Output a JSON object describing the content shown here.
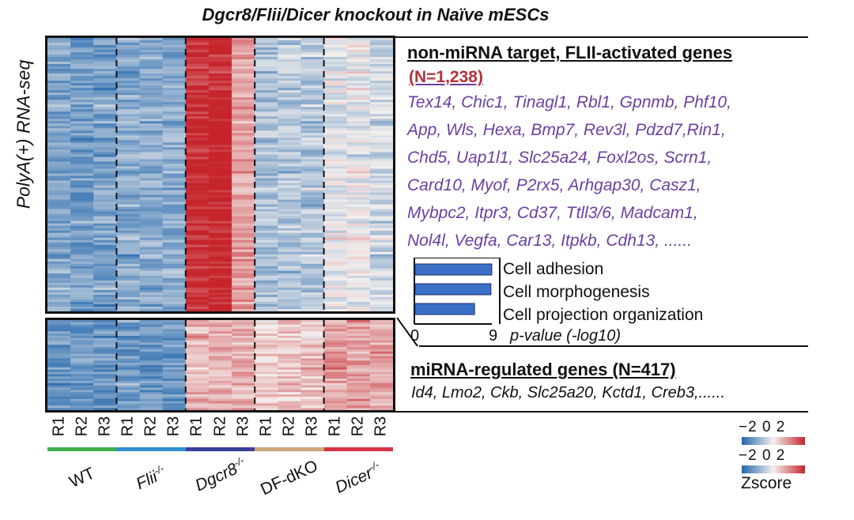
{
  "title": "Dgcr8/Flii/Dicer knockout in Naïve mESCs",
  "ylabel": "PolyA(+) RNA-seq",
  "heatmap": {
    "replicates": [
      "R1",
      "R2",
      "R3",
      "R1",
      "R2",
      "R3",
      "R1",
      "R2",
      "R3",
      "R1",
      "R2",
      "R3",
      "R1",
      "R2",
      "R3"
    ],
    "groups": [
      {
        "name": "WT",
        "superscript": "",
        "color": "#3fae4a"
      },
      {
        "name": "Flii",
        "superscript": "-/-",
        "color": "#2f8fd0"
      },
      {
        "name": "Dgcr8",
        "superscript": "-/-",
        "color": "#3a3f9a"
      },
      {
        "name": "DF-dKO",
        "superscript": "",
        "color": "#c9a77a"
      },
      {
        "name": "Dicer",
        "superscript": "-/-",
        "color": "#d63447"
      }
    ]
  },
  "top_section": {
    "title": "non-miRNA target, FLII-activated genes",
    "count": "(N=1,238)",
    "gene_lines": [
      "Tex14, Chic1, Tinagl1, Rbl1, Gpnmb, Phf10,",
      "App, Wls, Hexa, Bmp7, Rev3l, Pdzd7,Rin1,",
      "Chd5, Uap1l1, Slc25a24, Foxl2os, Scrn1,",
      "Card10, Myof, P2rx5, Arhgap30, Casz1,",
      "Mybpc2, Itpr3, Cd37, Ttll3/6, Madcam1,",
      "Nol4l, Vegfa, Car13, Itpkb, Cdh13, ......"
    ]
  },
  "bottom_section": {
    "title": "miRNA-regulated genes (N=417)",
    "genes": "Id4, Lmo2, Ckb, Slc25a20, Kctd1, Creb3,......"
  },
  "colors": {
    "bar_fill": "#3b6fc7",
    "gene_text": "#6b3fa0",
    "count_text": "#b8313a",
    "heat_low": "#2166ac",
    "heat_mid": "#f4f0ee",
    "heat_high": "#c6252c"
  },
  "scales": [
    {
      "ticks": "−2 0 2"
    },
    {
      "ticks": "−2 0 2"
    }
  ],
  "scale_label": "Zscore",
  "chart_data": [
    {
      "type": "heatmap",
      "name": "non-miRNA target, FLII-activated genes",
      "columns": [
        "WT R1",
        "WT R2",
        "WT R3",
        "Flii-/- R1",
        "Flii-/- R2",
        "Flii-/- R3",
        "Dgcr8-/- R1",
        "Dgcr8-/- R2",
        "Dgcr8-/- R3",
        "DF-dKO R1",
        "DF-dKO R2",
        "DF-dKO R3",
        "Dicer-/- R1",
        "Dicer-/- R2",
        "Dicer-/- R3"
      ],
      "rows": 1238,
      "column_mean_zscore": [
        -1.1,
        -1.2,
        -1.15,
        -1.0,
        -0.95,
        -1.0,
        1.9,
        2.1,
        0.8,
        -0.7,
        -0.6,
        -0.65,
        -0.15,
        -0.1,
        -0.35
      ],
      "zlim": [
        -2,
        2
      ]
    },
    {
      "type": "heatmap",
      "name": "miRNA-regulated genes",
      "columns": [
        "WT R1",
        "WT R2",
        "WT R3",
        "Flii-/- R1",
        "Flii-/- R2",
        "Flii-/- R3",
        "Dgcr8-/- R1",
        "Dgcr8-/- R2",
        "Dgcr8-/- R3",
        "DF-dKO R1",
        "DF-dKO R2",
        "DF-dKO R3",
        "Dicer-/- R1",
        "Dicer-/- R2",
        "Dicer-/- R3"
      ],
      "rows": 417,
      "column_mean_zscore": [
        -1.3,
        -1.25,
        -1.3,
        -1.3,
        -1.35,
        -1.3,
        0.6,
        0.65,
        0.6,
        0.35,
        0.4,
        0.45,
        0.8,
        0.85,
        0.7
      ],
      "zlim": [
        -2,
        2
      ]
    },
    {
      "type": "bar",
      "orientation": "horizontal",
      "categories": [
        "Cell adhesion",
        "Cell morphogenesis",
        "Cell projection organization"
      ],
      "values": [
        8.9,
        8.8,
        6.9
      ],
      "xlabel": "p-value (-log10)",
      "xlim": [
        0,
        9
      ],
      "tick_labels": [
        "0",
        "9"
      ]
    }
  ]
}
